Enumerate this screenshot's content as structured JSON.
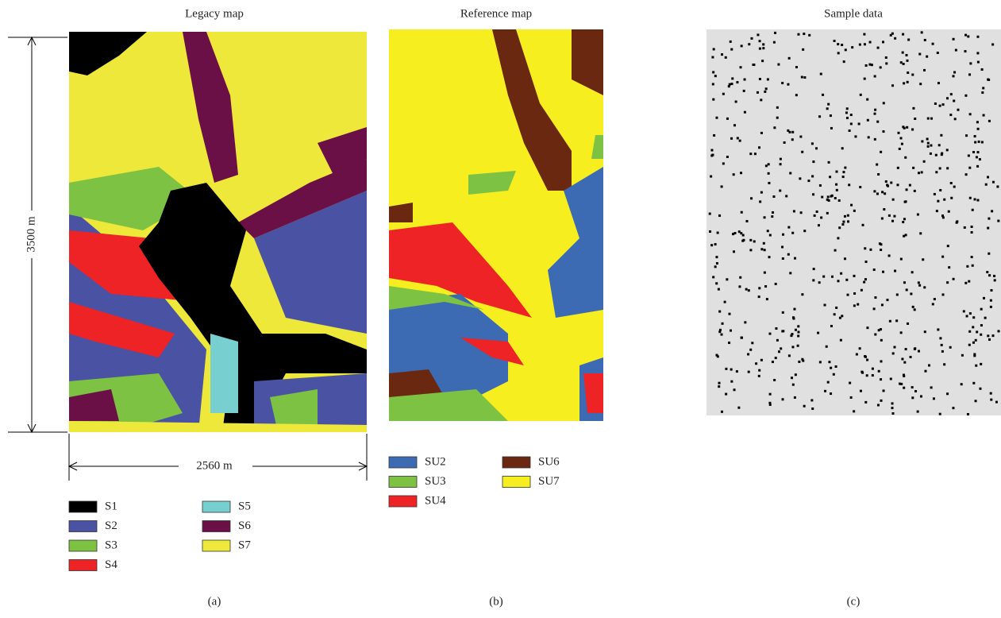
{
  "panels": [
    {
      "title": "Legacy map",
      "caption": "(a)",
      "height_label": "3500 m",
      "width_label": "2560 m",
      "legend": [
        {
          "label": "S1",
          "color": "#000000"
        },
        {
          "label": "S2",
          "color": "#4a52a3"
        },
        {
          "label": "S3",
          "color": "#7dc243"
        },
        {
          "label": "S4",
          "color": "#ee2326"
        },
        {
          "label": "S5",
          "color": "#78cfd0"
        },
        {
          "label": "S6",
          "color": "#6b1046"
        },
        {
          "label": "S7",
          "color": "#eee83a"
        }
      ]
    },
    {
      "title": "Reference map",
      "caption": "(b)",
      "legend": [
        {
          "label": "SU2",
          "color": "#3c6ab3"
        },
        {
          "label": "SU3",
          "color": "#7dc243"
        },
        {
          "label": "SU4",
          "color": "#ee2326"
        },
        {
          "label": "SU6",
          "color": "#6a2810"
        },
        {
          "label": "SU7",
          "color": "#f6ee1f"
        }
      ]
    },
    {
      "title": "Sample data",
      "caption": "(c)"
    }
  ]
}
